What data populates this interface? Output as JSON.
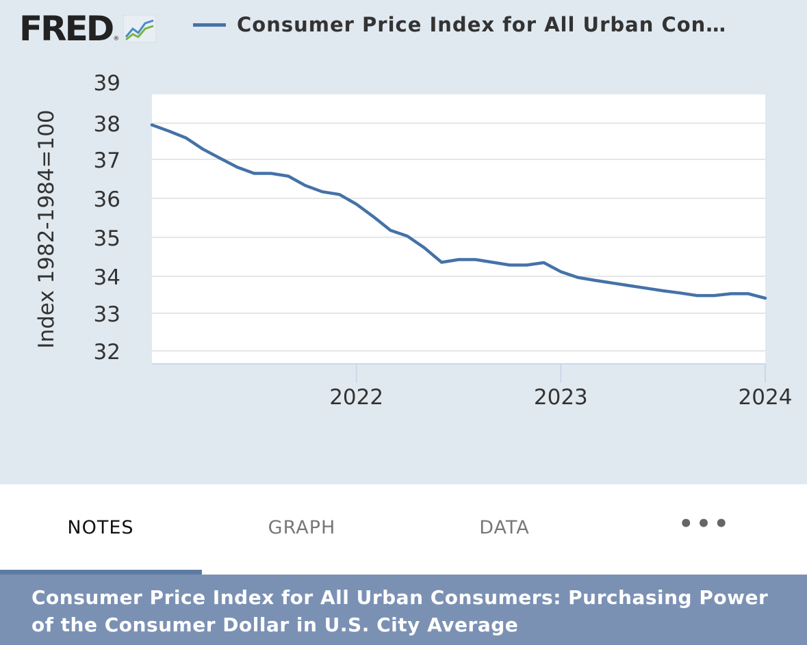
{
  "header": {
    "logo_text": "FRED",
    "logo_registered": "®",
    "legend_label": "Consumer Price Index for All Urban Con…"
  },
  "colors": {
    "series": "#4572a7",
    "panel_bg": "#e1e9f0",
    "plot_bg": "#ffffff",
    "banner_bg": "#7b91b4",
    "tab_indicator": "#5d7ba4"
  },
  "chart_data": {
    "type": "line",
    "title": "Consumer Price Index for All Urban Consumers: Purchasing Power of the Consumer Dollar in U.S. City Average",
    "xlabel": "",
    "ylabel": "Index 1982-1984=100",
    "ylim": [
      32,
      39
    ],
    "y_ticks": [
      39,
      38,
      37,
      36,
      35,
      34,
      33,
      32
    ],
    "y_tick_labels": [
      "39",
      "38",
      "37",
      "36",
      "35",
      "34",
      "33",
      "32"
    ],
    "x_range": [
      2021.0,
      2024.0
    ],
    "x_ticks": [
      2022,
      2023,
      2024
    ],
    "x_tick_labels": [
      "2022",
      "2023",
      "2024"
    ],
    "grid": true,
    "series": [
      {
        "name": "Consumer Price Index for All Urban Consumers: Purchasing Power of the Consumer Dollar in U.S. City Average",
        "x": [
          2021.0,
          2021.083,
          2021.167,
          2021.25,
          2021.333,
          2021.417,
          2021.5,
          2021.583,
          2021.667,
          2021.75,
          2021.833,
          2021.917,
          2022.0,
          2022.083,
          2022.167,
          2022.25,
          2022.333,
          2022.417,
          2022.5,
          2022.583,
          2022.667,
          2022.75,
          2022.833,
          2022.917,
          2023.0,
          2023.083,
          2023.167,
          2023.25,
          2023.333,
          2023.417,
          2023.5,
          2023.583,
          2023.667,
          2023.75,
          2023.833,
          2023.917,
          2024.0
        ],
        "values": [
          37.95,
          37.78,
          37.59,
          37.28,
          37.03,
          36.8,
          36.64,
          36.64,
          36.57,
          36.33,
          36.17,
          36.1,
          35.85,
          35.53,
          35.18,
          35.03,
          34.73,
          34.36,
          34.43,
          34.43,
          34.36,
          34.29,
          34.29,
          34.35,
          34.12,
          33.97,
          33.89,
          33.82,
          33.75,
          33.68,
          33.61,
          33.55,
          33.48,
          33.48,
          33.53,
          33.53,
          33.41
        ]
      }
    ]
  },
  "tabs": [
    {
      "label": "NOTES",
      "active": true
    },
    {
      "label": "GRAPH",
      "active": false
    },
    {
      "label": "DATA",
      "active": false
    },
    {
      "label": "•••",
      "active": false
    }
  ],
  "banner": {
    "title": "Consumer Price Index for All Urban Consumers: Purchasing Power of the Consumer Dollar in U.S. City Average"
  }
}
